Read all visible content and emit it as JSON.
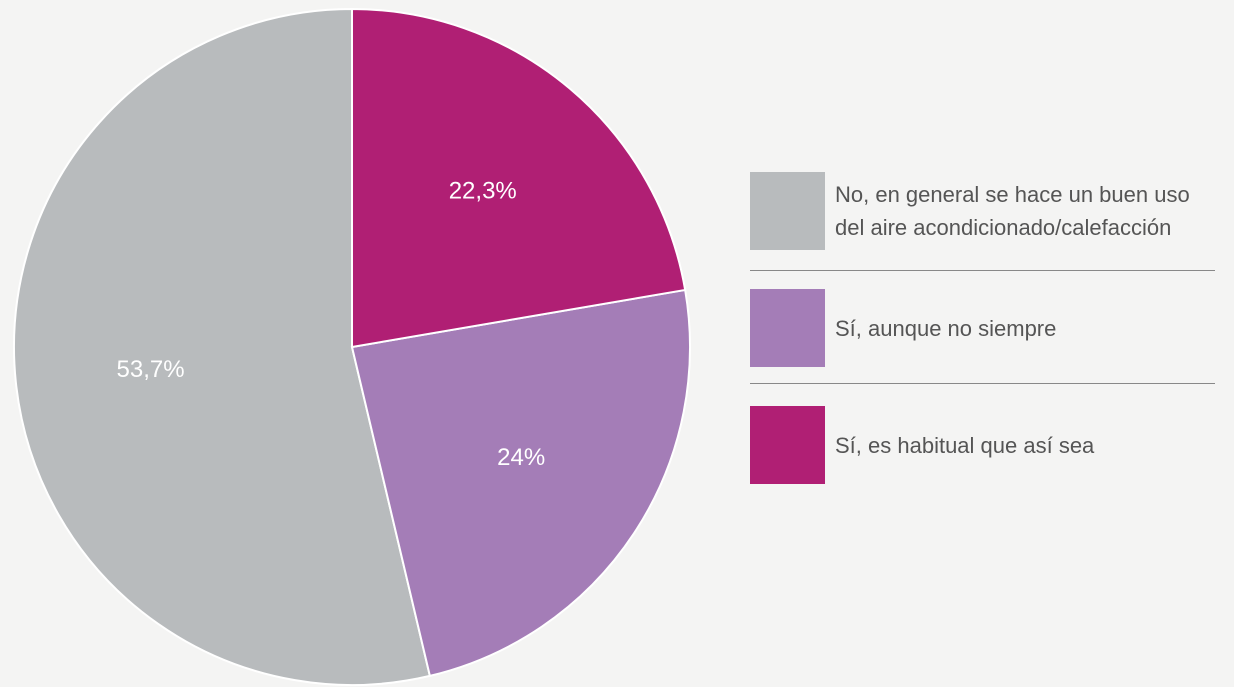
{
  "chart_data": {
    "type": "pie",
    "categories": [
      "No, en general se hace un buen uso del aire acondicionado/calefacción",
      "Sí, aunque no siempre",
      "Sí, es habitual que así sea"
    ],
    "values": [
      53.7,
      24,
      22.3
    ],
    "value_labels": [
      "53,7%",
      "24%",
      "22,3%"
    ],
    "colors": [
      "#b8bbbd",
      "#a47db7",
      "#b01f74"
    ]
  }
}
